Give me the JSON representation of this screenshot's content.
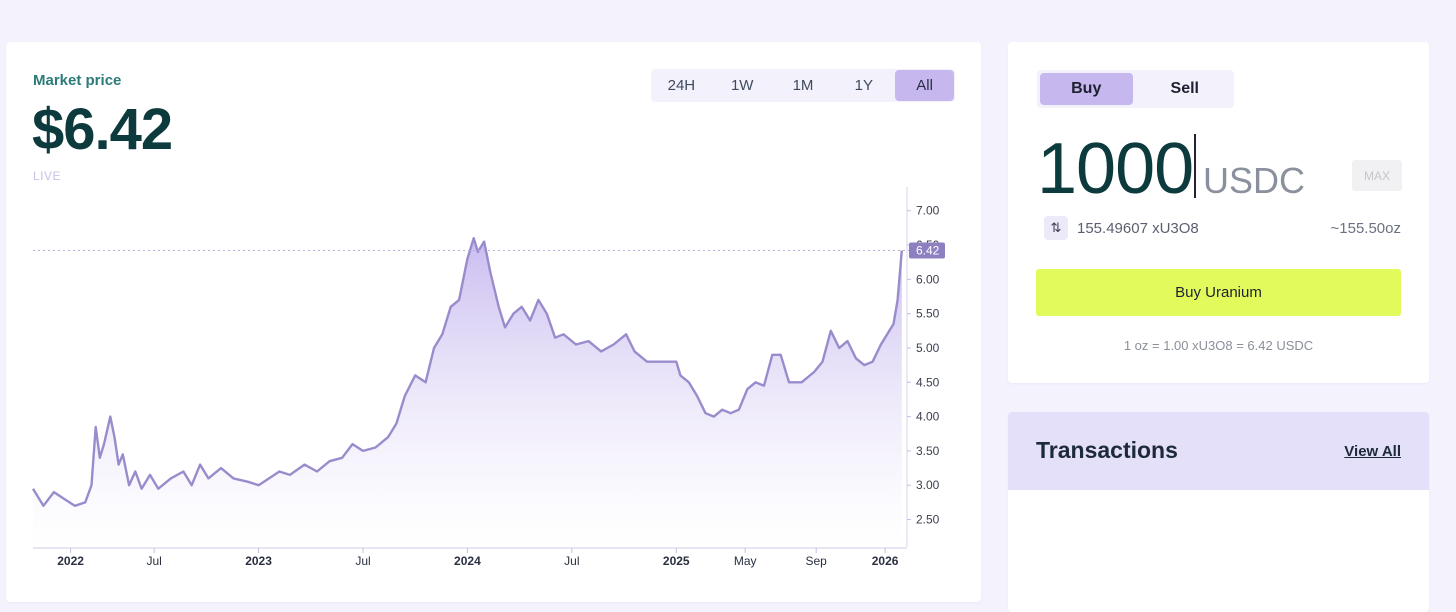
{
  "market": {
    "label": "Market price",
    "price": "$6.42",
    "live": "LIVE"
  },
  "ranges": [
    "24H",
    "1W",
    "1M",
    "1Y",
    "All"
  ],
  "active_range": "All",
  "trade": {
    "tabs": [
      "Buy",
      "Sell"
    ],
    "active_tab": "Buy",
    "amount": "1000",
    "unit": "USDC",
    "max_label": "MAX",
    "converted": "155.49607 xU3O8",
    "converted_oz": "~155.50oz",
    "button": "Buy Uranium",
    "rate": "1 oz = 1.00 xU3O8 = 6.42 USDC"
  },
  "transactions": {
    "title": "Transactions",
    "view_all": "View All"
  },
  "colors": {
    "accent": "#c6b7ee",
    "line": "#9a8ccc",
    "buy_button": "#e2fa5b",
    "price_text": "#0c3a3d",
    "label_teal": "#2b7b78"
  },
  "chart_data": {
    "type": "area",
    "y_ticks": [
      "7.00",
      "6.50",
      "6.00",
      "5.50",
      "5.00",
      "4.50",
      "4.00",
      "3.50",
      "3.00",
      "2.50"
    ],
    "ylim": [
      2.1,
      7.2
    ],
    "x_ticks": [
      {
        "label": "2022",
        "t": 2022.1
      },
      {
        "label": "Jul",
        "t": 2022.5
      },
      {
        "label": "2023",
        "t": 2023.0
      },
      {
        "label": "Jul",
        "t": 2023.5
      },
      {
        "label": "2024",
        "t": 2024.0
      },
      {
        "label": "Jul",
        "t": 2024.5
      },
      {
        "label": "2025",
        "t": 2025.0
      },
      {
        "label": "May",
        "t": 2025.33
      },
      {
        "label": "Sep",
        "t": 2025.67
      },
      {
        "label": "2026",
        "t": 2026.0
      }
    ],
    "xlim": [
      2021.92,
      2026.1
    ],
    "current_value": 6.42,
    "current_label": "6.42",
    "series": [
      [
        2021.92,
        2.95
      ],
      [
        2021.97,
        2.7
      ],
      [
        2022.02,
        2.9
      ],
      [
        2022.07,
        2.8
      ],
      [
        2022.12,
        2.7
      ],
      [
        2022.17,
        2.75
      ],
      [
        2022.2,
        3.0
      ],
      [
        2022.22,
        3.85
      ],
      [
        2022.24,
        3.4
      ],
      [
        2022.26,
        3.6
      ],
      [
        2022.29,
        4.0
      ],
      [
        2022.31,
        3.7
      ],
      [
        2022.33,
        3.3
      ],
      [
        2022.35,
        3.45
      ],
      [
        2022.38,
        3.0
      ],
      [
        2022.41,
        3.2
      ],
      [
        2022.44,
        2.95
      ],
      [
        2022.48,
        3.15
      ],
      [
        2022.52,
        2.95
      ],
      [
        2022.58,
        3.1
      ],
      [
        2022.64,
        3.2
      ],
      [
        2022.68,
        3.0
      ],
      [
        2022.72,
        3.3
      ],
      [
        2022.76,
        3.1
      ],
      [
        2022.82,
        3.25
      ],
      [
        2022.88,
        3.1
      ],
      [
        2022.95,
        3.05
      ],
      [
        2023.0,
        3.0
      ],
      [
        2023.05,
        3.1
      ],
      [
        2023.1,
        3.2
      ],
      [
        2023.15,
        3.15
      ],
      [
        2023.22,
        3.3
      ],
      [
        2023.28,
        3.2
      ],
      [
        2023.34,
        3.35
      ],
      [
        2023.4,
        3.4
      ],
      [
        2023.45,
        3.6
      ],
      [
        2023.5,
        3.5
      ],
      [
        2023.56,
        3.55
      ],
      [
        2023.62,
        3.7
      ],
      [
        2023.66,
        3.9
      ],
      [
        2023.7,
        4.3
      ],
      [
        2023.75,
        4.6
      ],
      [
        2023.8,
        4.5
      ],
      [
        2023.84,
        5.0
      ],
      [
        2023.88,
        5.2
      ],
      [
        2023.92,
        5.6
      ],
      [
        2023.96,
        5.7
      ],
      [
        2024.0,
        6.3
      ],
      [
        2024.03,
        6.6
      ],
      [
        2024.05,
        6.4
      ],
      [
        2024.08,
        6.55
      ],
      [
        2024.11,
        6.1
      ],
      [
        2024.15,
        5.6
      ],
      [
        2024.18,
        5.3
      ],
      [
        2024.22,
        5.5
      ],
      [
        2024.26,
        5.6
      ],
      [
        2024.3,
        5.4
      ],
      [
        2024.34,
        5.7
      ],
      [
        2024.38,
        5.5
      ],
      [
        2024.42,
        5.15
      ],
      [
        2024.46,
        5.2
      ],
      [
        2024.52,
        5.05
      ],
      [
        2024.58,
        5.1
      ],
      [
        2024.64,
        4.95
      ],
      [
        2024.7,
        5.05
      ],
      [
        2024.76,
        5.2
      ],
      [
        2024.8,
        4.95
      ],
      [
        2024.86,
        4.8
      ],
      [
        2024.92,
        4.8
      ],
      [
        2025.0,
        4.8
      ],
      [
        2025.02,
        4.6
      ],
      [
        2025.06,
        4.5
      ],
      [
        2025.1,
        4.3
      ],
      [
        2025.14,
        4.05
      ],
      [
        2025.18,
        4.0
      ],
      [
        2025.22,
        4.1
      ],
      [
        2025.26,
        4.05
      ],
      [
        2025.3,
        4.1
      ],
      [
        2025.34,
        4.4
      ],
      [
        2025.38,
        4.5
      ],
      [
        2025.42,
        4.45
      ],
      [
        2025.46,
        4.9
      ],
      [
        2025.5,
        4.9
      ],
      [
        2025.54,
        4.5
      ],
      [
        2025.6,
        4.5
      ],
      [
        2025.66,
        4.65
      ],
      [
        2025.7,
        4.8
      ],
      [
        2025.74,
        5.25
      ],
      [
        2025.78,
        5.0
      ],
      [
        2025.82,
        5.1
      ],
      [
        2025.86,
        4.85
      ],
      [
        2025.9,
        4.75
      ],
      [
        2025.94,
        4.8
      ],
      [
        2025.98,
        5.05
      ],
      [
        2026.01,
        5.2
      ],
      [
        2026.04,
        5.35
      ],
      [
        2026.06,
        5.7
      ],
      [
        2026.08,
        6.42
      ]
    ]
  }
}
